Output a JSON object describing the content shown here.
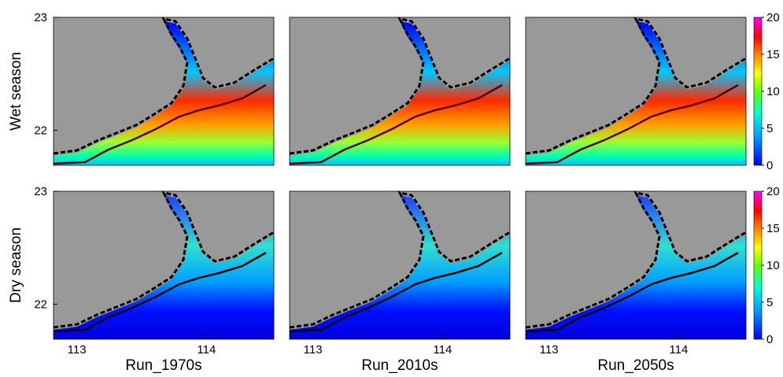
{
  "row_labels": [
    "Wet season",
    "Dry season"
  ],
  "columns": [
    "Run_1970s",
    "Run_2010s",
    "Run_2050s"
  ],
  "xlim": [
    112.82,
    114.52
  ],
  "xticks": [
    113,
    114
  ],
  "ylim": [
    21.69,
    23
  ],
  "yticks": [
    22,
    23
  ],
  "colorbar": {
    "lim": [
      0,
      20
    ],
    "ticks": [
      0,
      5,
      10,
      15,
      20
    ]
  }
}
